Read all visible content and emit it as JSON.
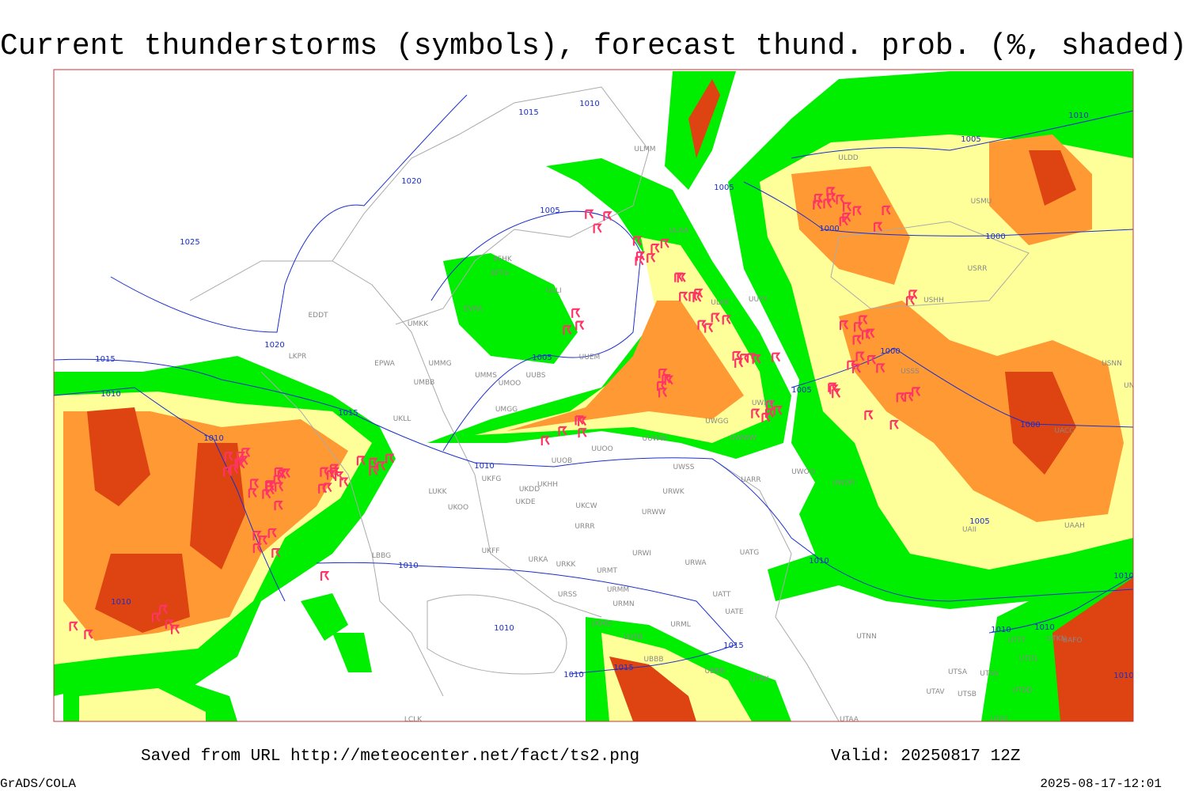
{
  "header": {
    "title": "Current thunderstorms (symbols), forecast thund. prob. (%, shaded)"
  },
  "isobar_labels": [
    "1015",
    "1010",
    "1020",
    "1025",
    "1005",
    "1020",
    "1015",
    "1010",
    "1005",
    "1015",
    "1010",
    "1005",
    "1000",
    "1005",
    "1010",
    "1000",
    "1000",
    "1005",
    "1000",
    "1010",
    "1005",
    "1010",
    "1010",
    "1010",
    "1010",
    "1015",
    "1015",
    "1010",
    "1010",
    "1010",
    "1010",
    "1010"
  ],
  "station_labels": [
    "ULMM",
    "ULDD",
    "ULAA",
    "EFHK",
    "EFTU",
    "ULLI",
    "UUYY",
    "ULKK",
    "USHH",
    "EDDT",
    "UMKK",
    "EVRA",
    "EPWA",
    "UMMG",
    "LKPR",
    "UMMS",
    "UMOO",
    "UUBS",
    "UUEM",
    "UMBB",
    "UKLL",
    "UMGG",
    "UUOO",
    "UUWW",
    "UWKD",
    "UWGG",
    "UWWW",
    "UUOB",
    "UKHH",
    "UKDD",
    "UKFG",
    "LUKK",
    "UKOO",
    "UKDE",
    "UKCW",
    "URWW",
    "UWSS",
    "URWK",
    "UARR",
    "UWOO",
    "UWOR",
    "URRR",
    "UKFF",
    "LBBG",
    "URKA",
    "URKK",
    "URWI",
    "UATG",
    "URWA",
    "URMT",
    "URSS",
    "URMM",
    "URMN",
    "UATE",
    "UATT",
    "URML",
    "UTNN",
    "UGKO",
    "UGTB",
    "UBBB",
    "UBBB",
    "UTAK",
    "UTSA",
    "UTSS",
    "UTAV",
    "UTSB",
    "UTST",
    "UTAA",
    "LCLK",
    "UACC",
    "UAAH",
    "UAII",
    "UTDL",
    "UTKN",
    "UAFO",
    "UTDD",
    "UTTT",
    "USNN",
    "USSS",
    "USRR",
    "USMU",
    "UNBB"
  ],
  "footer": {
    "source": "Saved from URL http://meteocenter.net/fact/ts2.png",
    "valid": "Valid: 20250817 12Z",
    "software": "GrADS/COLA",
    "timestamp": "2025-08-17-12:01"
  }
}
